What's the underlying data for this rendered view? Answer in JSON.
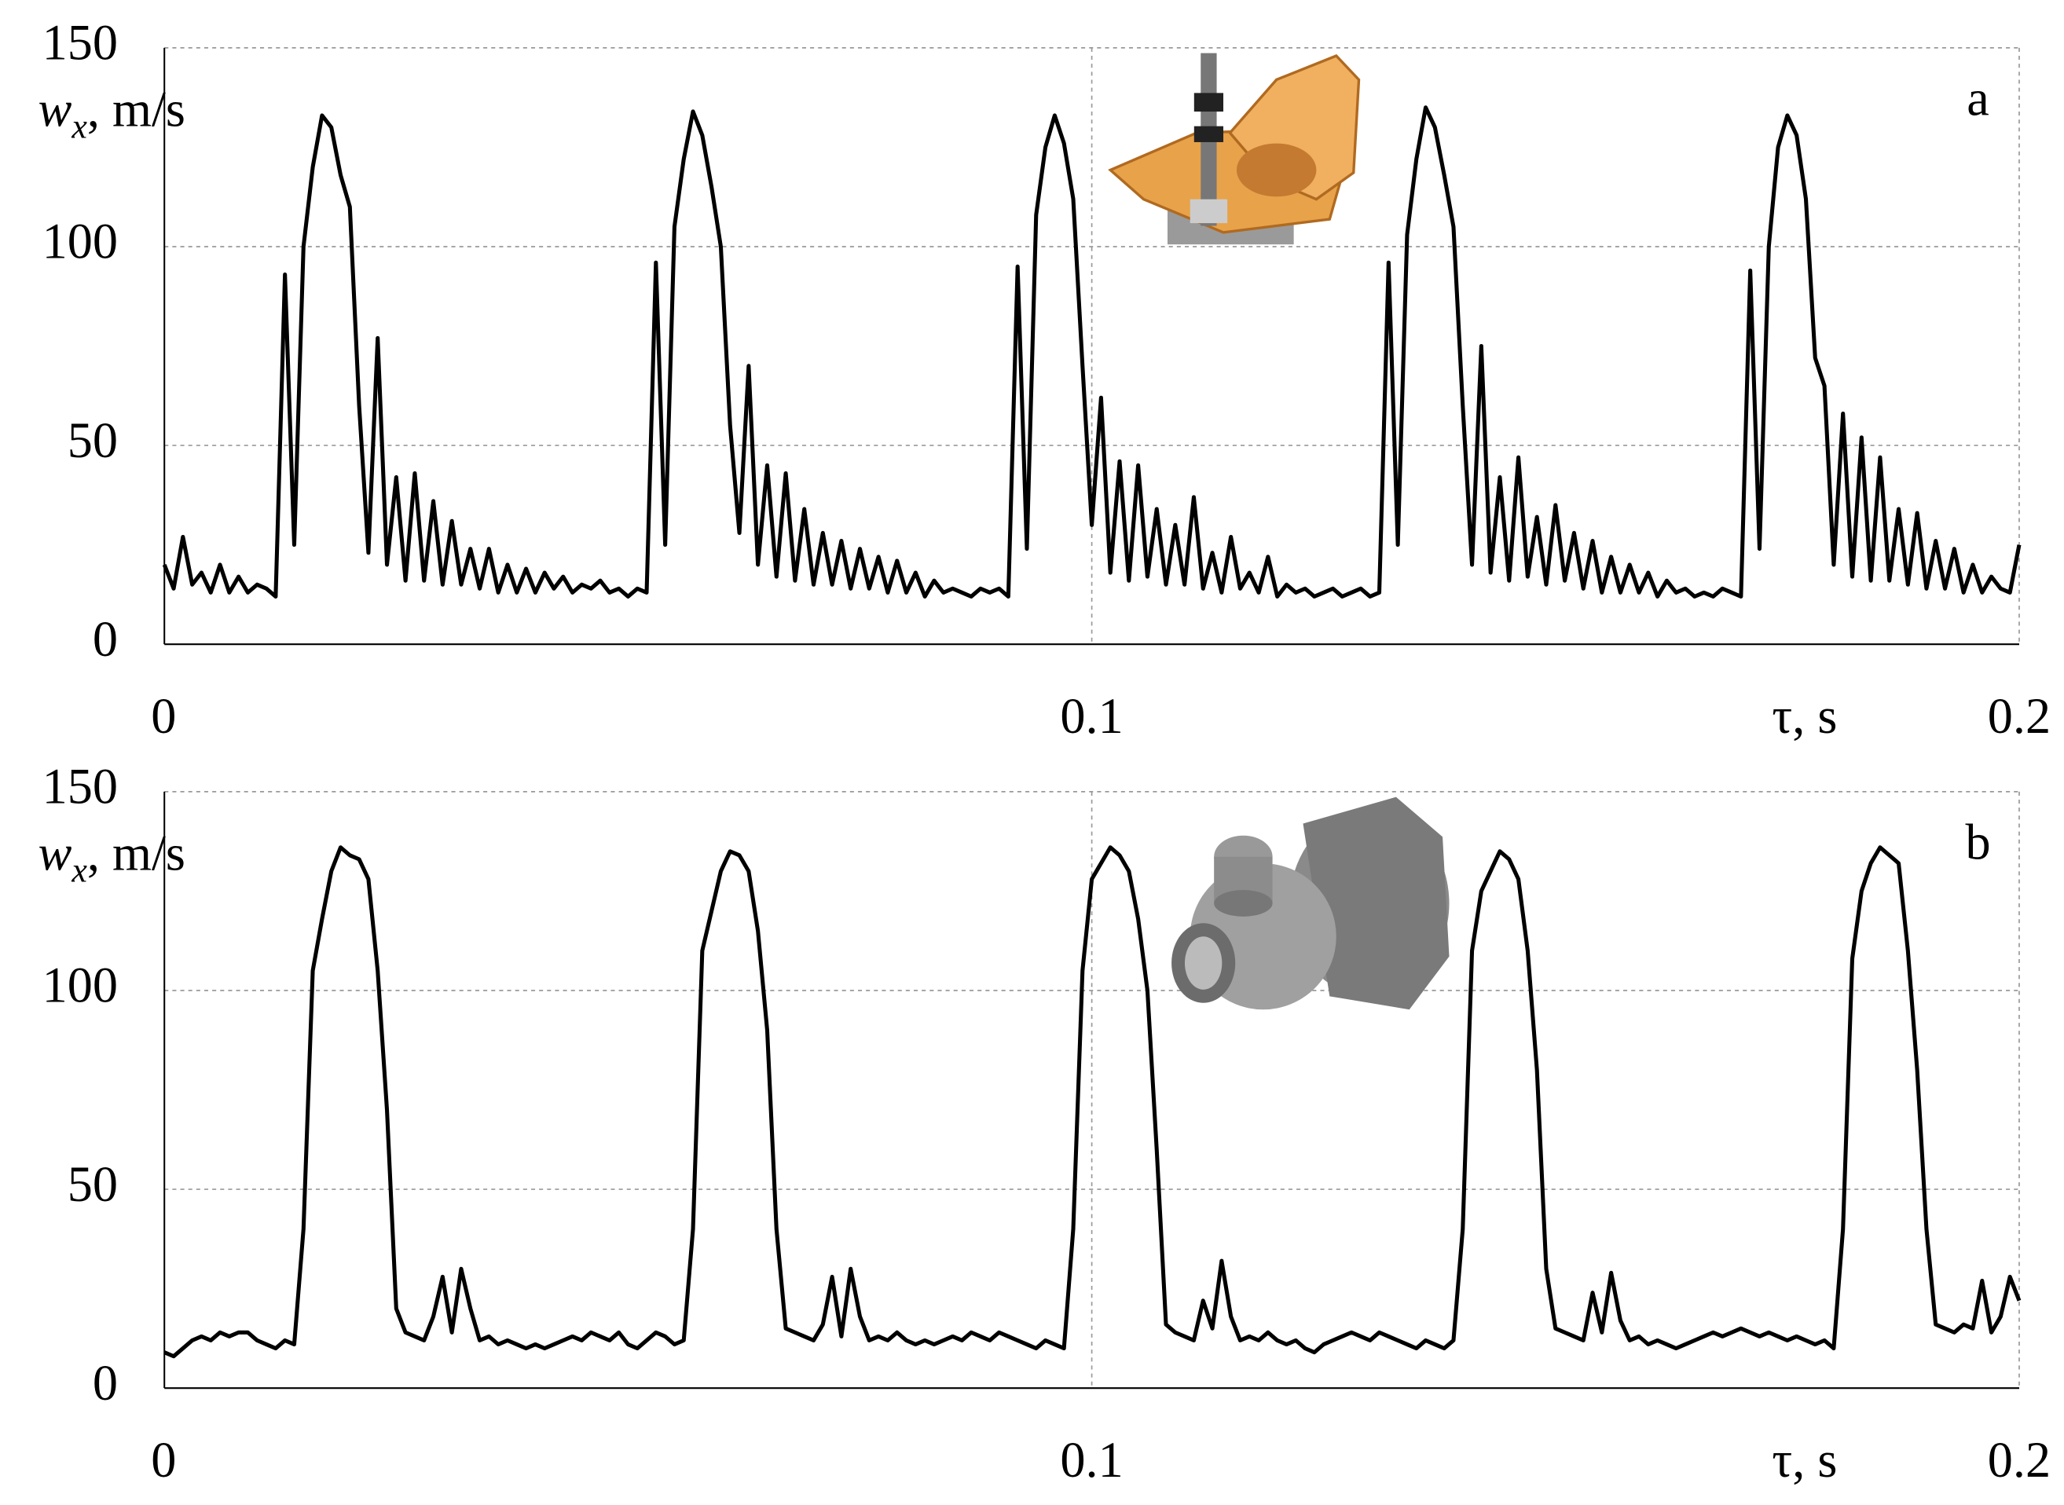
{
  "chart_data": [
    {
      "type": "line",
      "panel_label": "a",
      "ylabel": {
        "symbol": "w",
        "subscript": "x",
        "unit": ", m/s"
      },
      "xlabel": "τ, s",
      "color": "#000000",
      "grid": true,
      "xlim": [
        0,
        0.2
      ],
      "xticks": [
        0,
        0.1,
        0.2
      ],
      "ylim": [
        0,
        150
      ],
      "yticks": [
        0,
        50,
        100,
        150
      ],
      "x": [
        0,
        0.001,
        0.002,
        0.003,
        0.004,
        0.005,
        0.006,
        0.007,
        0.008,
        0.009,
        0.01,
        0.011,
        0.012,
        0.013,
        0.014,
        0.015,
        0.016,
        0.017,
        0.018,
        0.019,
        0.02,
        0.021,
        0.022,
        0.023,
        0.024,
        0.025,
        0.026,
        0.027,
        0.028,
        0.029,
        0.03,
        0.031,
        0.032,
        0.033,
        0.034,
        0.035,
        0.036,
        0.037,
        0.038,
        0.039,
        0.04,
        0.041,
        0.042,
        0.043,
        0.044,
        0.045,
        0.046,
        0.047,
        0.048,
        0.049,
        0.05,
        0.051,
        0.052,
        0.053,
        0.054,
        0.055,
        0.056,
        0.057,
        0.058,
        0.059,
        0.06,
        0.061,
        0.062,
        0.063,
        0.064,
        0.065,
        0.066,
        0.067,
        0.068,
        0.069,
        0.07,
        0.071,
        0.072,
        0.073,
        0.074,
        0.075,
        0.076,
        0.077,
        0.078,
        0.079,
        0.08,
        0.081,
        0.082,
        0.083,
        0.084,
        0.085,
        0.086,
        0.087,
        0.088,
        0.089,
        0.09,
        0.091,
        0.092,
        0.093,
        0.094,
        0.095,
        0.096,
        0.097,
        0.098,
        0.099,
        0.1,
        0.101,
        0.102,
        0.103,
        0.104,
        0.105,
        0.106,
        0.107,
        0.108,
        0.109,
        0.11,
        0.111,
        0.112,
        0.113,
        0.114,
        0.115,
        0.116,
        0.117,
        0.118,
        0.119,
        0.12,
        0.121,
        0.122,
        0.123,
        0.124,
        0.125,
        0.126,
        0.127,
        0.128,
        0.129,
        0.13,
        0.131,
        0.132,
        0.133,
        0.134,
        0.135,
        0.136,
        0.137,
        0.138,
        0.139,
        0.14,
        0.141,
        0.142,
        0.143,
        0.144,
        0.145,
        0.146,
        0.147,
        0.148,
        0.149,
        0.15,
        0.151,
        0.152,
        0.153,
        0.154,
        0.155,
        0.156,
        0.157,
        0.158,
        0.159,
        0.16,
        0.161,
        0.162,
        0.163,
        0.164,
        0.165,
        0.166,
        0.167,
        0.168,
        0.169,
        0.17,
        0.171,
        0.172,
        0.173,
        0.174,
        0.175,
        0.176,
        0.177,
        0.178,
        0.179,
        0.18,
        0.181,
        0.182,
        0.183,
        0.184,
        0.185,
        0.186,
        0.187,
        0.188,
        0.189,
        0.19,
        0.191,
        0.192,
        0.193,
        0.194,
        0.195,
        0.196,
        0.197,
        0.198,
        0.199,
        0.2
      ],
      "values": [
        20,
        14,
        27,
        15,
        18,
        13,
        20,
        13,
        17,
        13,
        15,
        14,
        12,
        93,
        25,
        100,
        120,
        133,
        130,
        118,
        110,
        60,
        23,
        77,
        20,
        42,
        16,
        43,
        16,
        36,
        15,
        31,
        15,
        24,
        14,
        24,
        13,
        20,
        13,
        19,
        13,
        18,
        14,
        17,
        13,
        15,
        14,
        16,
        13,
        14,
        12,
        14,
        13,
        96,
        25,
        105,
        122,
        134,
        128,
        115,
        100,
        55,
        28,
        70,
        20,
        45,
        17,
        43,
        16,
        34,
        15,
        28,
        15,
        26,
        14,
        24,
        14,
        22,
        13,
        21,
        13,
        18,
        12,
        16,
        13,
        14,
        13,
        12,
        14,
        13,
        14,
        12,
        95,
        24,
        108,
        125,
        133,
        126,
        112,
        70,
        30,
        62,
        18,
        46,
        16,
        45,
        17,
        34,
        15,
        30,
        15,
        37,
        14,
        23,
        13,
        27,
        14,
        18,
        13,
        22,
        12,
        15,
        13,
        14,
        12,
        13,
        14,
        12,
        13,
        14,
        12,
        13,
        96,
        25,
        103,
        122,
        135,
        130,
        118,
        105,
        60,
        20,
        75,
        18,
        42,
        16,
        47,
        17,
        32,
        15,
        35,
        16,
        28,
        14,
        26,
        13,
        22,
        13,
        20,
        13,
        18,
        12,
        16,
        13,
        14,
        12,
        13,
        12,
        14,
        13,
        12,
        94,
        24,
        100,
        125,
        133,
        128,
        112,
        72,
        65,
        20,
        58,
        17,
        52,
        16,
        47,
        16,
        34,
        15,
        33,
        14,
        26,
        14,
        24,
        13,
        20,
        13,
        17,
        14,
        13,
        25
      ]
    },
    {
      "type": "line",
      "panel_label": "b",
      "ylabel": {
        "symbol": "w",
        "subscript": "x",
        "unit": ", m/s"
      },
      "xlabel": "τ, s",
      "color": "#000000",
      "grid": true,
      "xlim": [
        0,
        0.2
      ],
      "xticks": [
        0,
        0.1,
        0.2
      ],
      "ylim": [
        0,
        150
      ],
      "yticks": [
        0,
        50,
        100,
        150
      ],
      "x": [
        0,
        0.001,
        0.002,
        0.003,
        0.004,
        0.005,
        0.006,
        0.007,
        0.008,
        0.009,
        0.01,
        0.011,
        0.012,
        0.013,
        0.014,
        0.015,
        0.016,
        0.017,
        0.018,
        0.019,
        0.02,
        0.021,
        0.022,
        0.023,
        0.024,
        0.025,
        0.026,
        0.027,
        0.028,
        0.029,
        0.03,
        0.031,
        0.032,
        0.033,
        0.034,
        0.035,
        0.036,
        0.037,
        0.038,
        0.039,
        0.04,
        0.041,
        0.042,
        0.043,
        0.044,
        0.045,
        0.046,
        0.047,
        0.048,
        0.049,
        0.05,
        0.051,
        0.052,
        0.053,
        0.054,
        0.055,
        0.056,
        0.057,
        0.058,
        0.059,
        0.06,
        0.061,
        0.062,
        0.063,
        0.064,
        0.065,
        0.066,
        0.067,
        0.068,
        0.069,
        0.07,
        0.071,
        0.072,
        0.073,
        0.074,
        0.075,
        0.076,
        0.077,
        0.078,
        0.079,
        0.08,
        0.081,
        0.082,
        0.083,
        0.084,
        0.085,
        0.086,
        0.087,
        0.088,
        0.089,
        0.09,
        0.091,
        0.092,
        0.093,
        0.094,
        0.095,
        0.096,
        0.097,
        0.098,
        0.099,
        0.1,
        0.101,
        0.102,
        0.103,
        0.104,
        0.105,
        0.106,
        0.107,
        0.108,
        0.109,
        0.11,
        0.111,
        0.112,
        0.113,
        0.114,
        0.115,
        0.116,
        0.117,
        0.118,
        0.119,
        0.12,
        0.121,
        0.122,
        0.123,
        0.124,
        0.125,
        0.126,
        0.127,
        0.128,
        0.129,
        0.13,
        0.131,
        0.132,
        0.133,
        0.134,
        0.135,
        0.136,
        0.137,
        0.138,
        0.139,
        0.14,
        0.141,
        0.142,
        0.143,
        0.144,
        0.145,
        0.146,
        0.147,
        0.148,
        0.149,
        0.15,
        0.151,
        0.152,
        0.153,
        0.154,
        0.155,
        0.156,
        0.157,
        0.158,
        0.159,
        0.16,
        0.161,
        0.162,
        0.163,
        0.164,
        0.165,
        0.166,
        0.167,
        0.168,
        0.169,
        0.17,
        0.171,
        0.172,
        0.173,
        0.174,
        0.175,
        0.176,
        0.177,
        0.178,
        0.179,
        0.18,
        0.181,
        0.182,
        0.183,
        0.184,
        0.185,
        0.186,
        0.187,
        0.188,
        0.189,
        0.19,
        0.191,
        0.192,
        0.193,
        0.194,
        0.195,
        0.196,
        0.197,
        0.198,
        0.199,
        0.2
      ],
      "values": [
        9,
        8,
        10,
        12,
        13,
        12,
        14,
        13,
        14,
        14,
        12,
        11,
        10,
        12,
        11,
        40,
        105,
        118,
        130,
        136,
        134,
        133,
        128,
        105,
        70,
        20,
        14,
        13,
        12,
        18,
        28,
        14,
        30,
        20,
        12,
        13,
        11,
        12,
        11,
        10,
        11,
        10,
        11,
        12,
        13,
        12,
        14,
        13,
        12,
        14,
        11,
        10,
        12,
        14,
        13,
        11,
        12,
        40,
        110,
        120,
        130,
        135,
        134,
        130,
        115,
        90,
        40,
        15,
        14,
        13,
        12,
        16,
        28,
        13,
        30,
        18,
        12,
        13,
        12,
        14,
        12,
        11,
        12,
        11,
        12,
        13,
        12,
        14,
        13,
        12,
        14,
        13,
        12,
        11,
        10,
        12,
        11,
        10,
        40,
        105,
        128,
        132,
        136,
        134,
        130,
        118,
        100,
        60,
        16,
        14,
        13,
        12,
        22,
        15,
        32,
        18,
        12,
        13,
        12,
        14,
        12,
        11,
        12,
        10,
        9,
        11,
        12,
        13,
        14,
        13,
        12,
        14,
        13,
        12,
        11,
        10,
        12,
        11,
        10,
        12,
        40,
        110,
        125,
        130,
        135,
        133,
        128,
        110,
        80,
        30,
        15,
        14,
        13,
        12,
        24,
        14,
        29,
        17,
        12,
        13,
        11,
        12,
        11,
        10,
        11,
        12,
        13,
        14,
        13,
        14,
        15,
        14,
        13,
        14,
        13,
        12,
        13,
        12,
        11,
        12,
        10,
        40,
        108,
        125,
        132,
        136,
        134,
        132,
        110,
        80,
        40,
        16,
        15,
        14,
        16,
        15,
        27,
        14,
        18,
        28,
        22
      ]
    }
  ]
}
